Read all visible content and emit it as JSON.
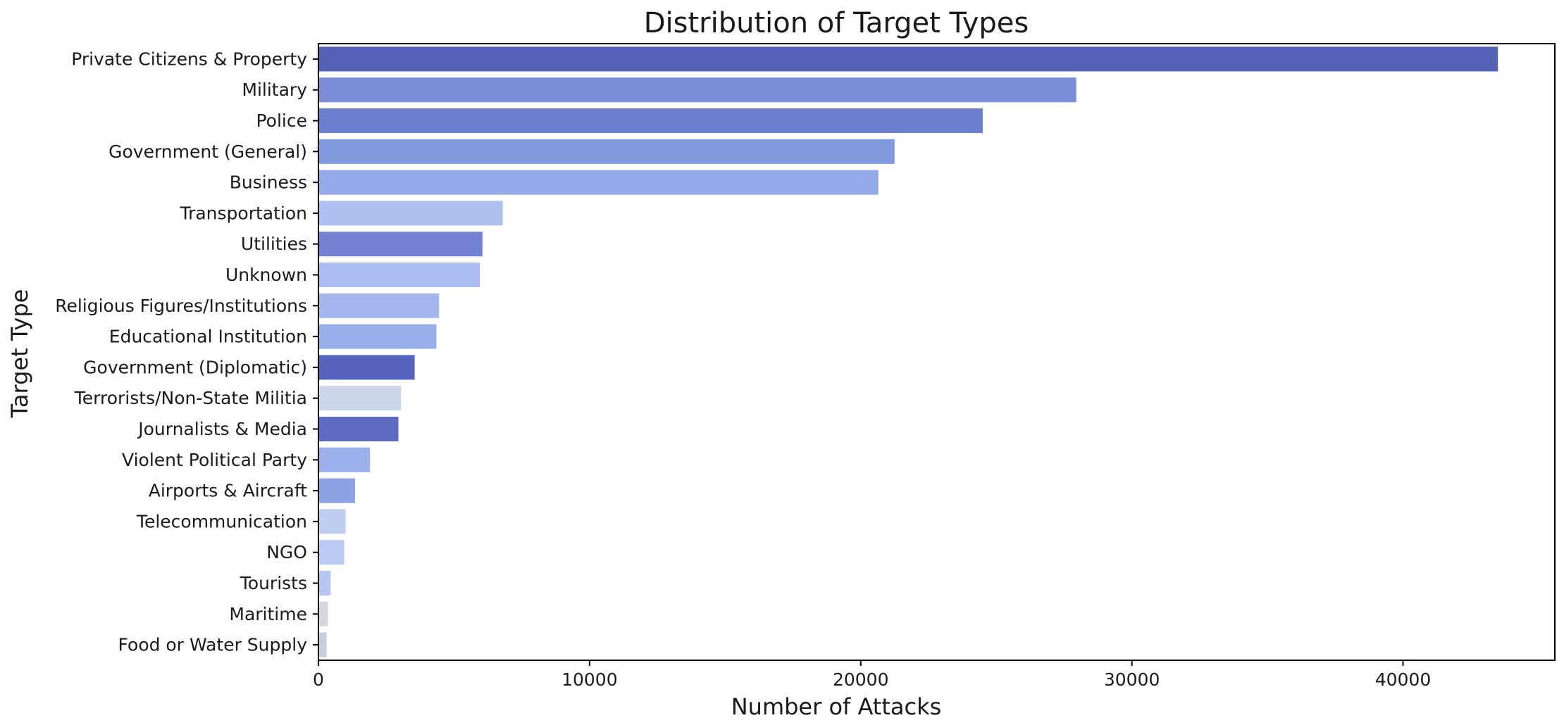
{
  "chart_data": {
    "type": "bar",
    "orientation": "horizontal",
    "title": "Distribution of Target Types",
    "xlabel": "Number of Attacks",
    "ylabel": "Target Type",
    "xlim": [
      0,
      45600
    ],
    "xticks": [
      0,
      10000,
      20000,
      30000,
      40000
    ],
    "grid": false,
    "categories": [
      "Private Citizens & Property",
      "Military",
      "Police",
      "Government (General)",
      "Business",
      "Transportation",
      "Utilities",
      "Unknown",
      "Religious Figures/Institutions",
      "Educational Institution",
      "Government (Diplomatic)",
      "Terrorists/Non-State Militia",
      "Journalists & Media",
      "Violent Political Party",
      "Airports & Aircraft",
      "Telecommunication",
      "NGO",
      "Tourists",
      "Maritime",
      "Food or Water Supply"
    ],
    "values": [
      43500,
      27950,
      24500,
      21250,
      20650,
      6800,
      6050,
      5950,
      4450,
      4350,
      3550,
      3050,
      2950,
      1900,
      1350,
      1000,
      950,
      450,
      350,
      300
    ],
    "colors": [
      "#5462b5",
      "#7a8dd6",
      "#6b7fcc",
      "#8399de",
      "#93a9e8",
      "#aebff2",
      "#7383d2",
      "#abbcf1",
      "#a4b6ee",
      "#99afea",
      "#5563bc",
      "#cdd7ec",
      "#5d6cc1",
      "#9aafec",
      "#8da2e3",
      "#bfcdf1",
      "#bccbf1",
      "#b6c6f0",
      "#d4d8e0",
      "#c8cfdc"
    ]
  }
}
